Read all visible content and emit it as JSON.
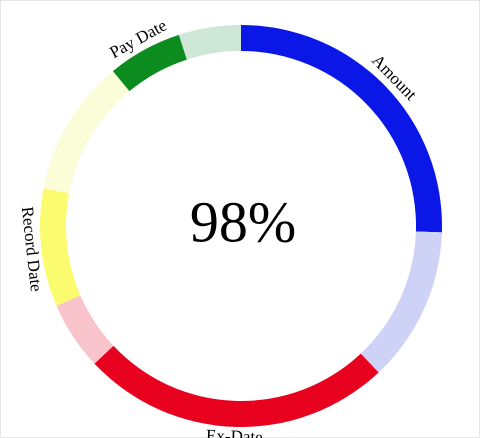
{
  "chart_data": {
    "type": "pie",
    "style": "donut",
    "center_text": "98%",
    "segments": [
      {
        "label": "Amount",
        "color": "#0a17e6",
        "value": 25.5
      },
      {
        "label": "",
        "color": "#cfd2f7",
        "value": 12.5
      },
      {
        "label": "Ex-Date",
        "color": "#e8001f",
        "value": 25.0
      },
      {
        "label": "",
        "color": "#f9c3cc",
        "value": 5.5
      },
      {
        "label": "Record Date",
        "color": "#fbfb6f",
        "value": 9.5
      },
      {
        "label": "",
        "color": "#fbfdd8",
        "value": 11.0
      },
      {
        "label": "Pay Date",
        "color": "#0c8c1f",
        "value": 6.0
      },
      {
        "label": "",
        "color": "#cfe7d6",
        "value": 5.0
      }
    ]
  }
}
